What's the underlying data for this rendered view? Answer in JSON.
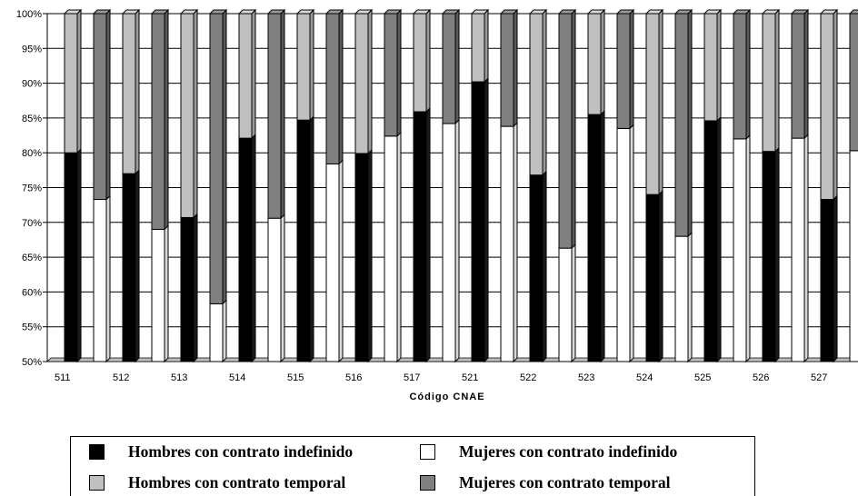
{
  "chart_data": {
    "type": "bar",
    "stacked": true,
    "percent": true,
    "style": "3d",
    "xlabel": "Código CNAE",
    "ylim": [
      50,
      100
    ],
    "y_ticks": [
      "50%",
      "55%",
      "60%",
      "65%",
      "70%",
      "75%",
      "80%",
      "85%",
      "90%",
      "95%",
      "100%"
    ],
    "categories": [
      "511",
      "512",
      "513",
      "514",
      "515",
      "516",
      "517",
      "521",
      "522",
      "523",
      "524",
      "525",
      "526",
      "527"
    ],
    "bars": [
      {
        "code": "511",
        "gender": "H",
        "indefinido": 80,
        "temporal": 20
      },
      {
        "code": "511",
        "gender": "M",
        "indefinido": 73.3,
        "temporal": 26.7
      },
      {
        "code": "512",
        "gender": "H",
        "indefinido": 77,
        "temporal": 23
      },
      {
        "code": "512",
        "gender": "M",
        "indefinido": 69,
        "temporal": 31
      },
      {
        "code": "513",
        "gender": "H",
        "indefinido": 70.7,
        "temporal": 29.3
      },
      {
        "code": "513",
        "gender": "M",
        "indefinido": 58.3,
        "temporal": 41.7
      },
      {
        "code": "514",
        "gender": "H",
        "indefinido": 82.1,
        "temporal": 17.9
      },
      {
        "code": "514",
        "gender": "M",
        "indefinido": 70.6,
        "temporal": 29.4
      },
      {
        "code": "515",
        "gender": "H",
        "indefinido": 84.7,
        "temporal": 15.3
      },
      {
        "code": "515",
        "gender": "M",
        "indefinido": 78.4,
        "temporal": 21.6
      },
      {
        "code": "516",
        "gender": "H",
        "indefinido": 79.9,
        "temporal": 20.1
      },
      {
        "code": "516",
        "gender": "M",
        "indefinido": 82.4,
        "temporal": 17.6
      },
      {
        "code": "517",
        "gender": "H",
        "indefinido": 85.9,
        "temporal": 14.1
      },
      {
        "code": "517",
        "gender": "M",
        "indefinido": 84.2,
        "temporal": 15.8
      },
      {
        "code": "521",
        "gender": "H",
        "indefinido": 90.2,
        "temporal": 9.8
      },
      {
        "code": "521",
        "gender": "M",
        "indefinido": 83.8,
        "temporal": 16.2
      },
      {
        "code": "522",
        "gender": "H",
        "indefinido": 76.8,
        "temporal": 23.2
      },
      {
        "code": "522",
        "gender": "M",
        "indefinido": 66.3,
        "temporal": 33.7
      },
      {
        "code": "523",
        "gender": "H",
        "indefinido": 85.5,
        "temporal": 14.5
      },
      {
        "code": "523",
        "gender": "M",
        "indefinido": 83.5,
        "temporal": 16.5
      },
      {
        "code": "524",
        "gender": "H",
        "indefinido": 74,
        "temporal": 26
      },
      {
        "code": "524",
        "gender": "M",
        "indefinido": 68,
        "temporal": 32
      },
      {
        "code": "525",
        "gender": "H",
        "indefinido": 84.6,
        "temporal": 15.4
      },
      {
        "code": "525",
        "gender": "M",
        "indefinido": 82,
        "temporal": 18
      },
      {
        "code": "526",
        "gender": "H",
        "indefinido": 80.2,
        "temporal": 19.8
      },
      {
        "code": "526",
        "gender": "M",
        "indefinido": 82.1,
        "temporal": 17.9
      },
      {
        "code": "527",
        "gender": "H",
        "indefinido": 73.3,
        "temporal": 26.7
      },
      {
        "code": "527",
        "gender": "M",
        "indefinido": 80.3,
        "temporal": 19.7
      }
    ],
    "legend_position": "bottom",
    "series": [
      {
        "key": "H_ind",
        "name": "Hombres con contrato indefinido",
        "color": "#000000"
      },
      {
        "key": "M_ind",
        "name": "Mujeres con contrato indefinido",
        "color": "#ffffff"
      },
      {
        "key": "H_tmp",
        "name": "Hombres con contrato temporal",
        "color": "#c0c0c0"
      },
      {
        "key": "M_tmp",
        "name": "Mujeres con contrato temporal",
        "color": "#808080"
      }
    ]
  }
}
